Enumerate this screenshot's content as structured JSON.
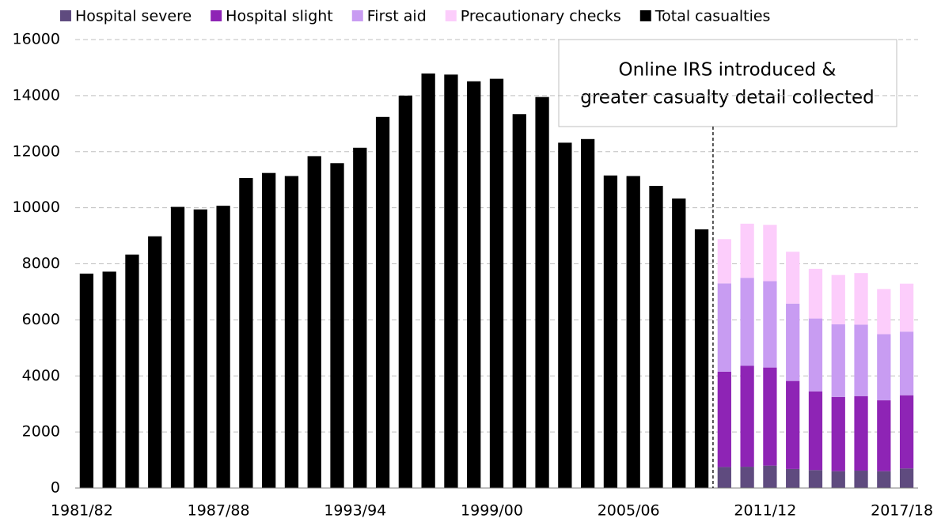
{
  "chart_data": {
    "type": "stacked_bar",
    "categories": [
      "1981/82",
      null,
      null,
      null,
      null,
      null,
      "1987/88",
      null,
      null,
      null,
      null,
      null,
      "1993/94",
      null,
      null,
      null,
      null,
      null,
      "1999/00",
      null,
      null,
      null,
      null,
      null,
      "2005/06",
      null,
      null,
      null,
      null,
      null,
      "2011/12",
      null,
      null,
      null,
      null,
      null,
      "2017/18"
    ],
    "series": [
      {
        "name": "Hospital severe",
        "color": "#5f4b7f",
        "values": [
          null,
          null,
          null,
          null,
          null,
          null,
          null,
          null,
          null,
          null,
          null,
          null,
          null,
          null,
          null,
          null,
          null,
          null,
          null,
          null,
          null,
          null,
          null,
          null,
          null,
          null,
          null,
          null,
          750,
          760,
          800,
          680,
          640,
          600,
          620,
          600,
          700
        ]
      },
      {
        "name": "Hospital slight",
        "color": "#8e24b5",
        "values": [
          null,
          null,
          null,
          null,
          null,
          null,
          null,
          null,
          null,
          null,
          null,
          null,
          null,
          null,
          null,
          null,
          null,
          null,
          null,
          null,
          null,
          null,
          null,
          null,
          null,
          null,
          null,
          null,
          3400,
          3600,
          3500,
          3140,
          2810,
          2650,
          2660,
          2530,
          2610
        ]
      },
      {
        "name": "First aid",
        "color": "#c89cf2",
        "values": [
          null,
          null,
          null,
          null,
          null,
          null,
          null,
          null,
          null,
          null,
          null,
          null,
          null,
          null,
          null,
          null,
          null,
          null,
          null,
          null,
          null,
          null,
          null,
          null,
          null,
          null,
          null,
          null,
          3150,
          3140,
          3080,
          2760,
          2600,
          2590,
          2550,
          2360,
          2270
        ]
      },
      {
        "name": "Precautionary checks",
        "color": "#fccdfb",
        "values": [
          null,
          null,
          null,
          null,
          null,
          null,
          null,
          null,
          null,
          null,
          null,
          null,
          null,
          null,
          null,
          null,
          null,
          null,
          null,
          null,
          null,
          null,
          null,
          null,
          null,
          null,
          null,
          null,
          1580,
          1930,
          2010,
          1850,
          1770,
          1760,
          1840,
          1610,
          1710
        ]
      },
      {
        "name": "Total casualties",
        "color": "#000000",
        "values": [
          7650,
          7720,
          8330,
          8980,
          10030,
          9940,
          10070,
          11060,
          11240,
          11130,
          11840,
          11590,
          12140,
          13240,
          14000,
          14790,
          14750,
          14510,
          14600,
          13340,
          13950,
          12320,
          12450,
          11150,
          11130,
          10780,
          10330,
          9230,
          null,
          null,
          null,
          null,
          null,
          null,
          null,
          null,
          null
        ]
      }
    ],
    "annotation": [
      "Online IRS introduced &",
      "greater casualty detail collected"
    ],
    "ylim": [
      0,
      16000
    ],
    "yticks": [
      0,
      2000,
      4000,
      6000,
      8000,
      10000,
      12000,
      14000,
      16000
    ],
    "grid": true,
    "legend": "top"
  }
}
